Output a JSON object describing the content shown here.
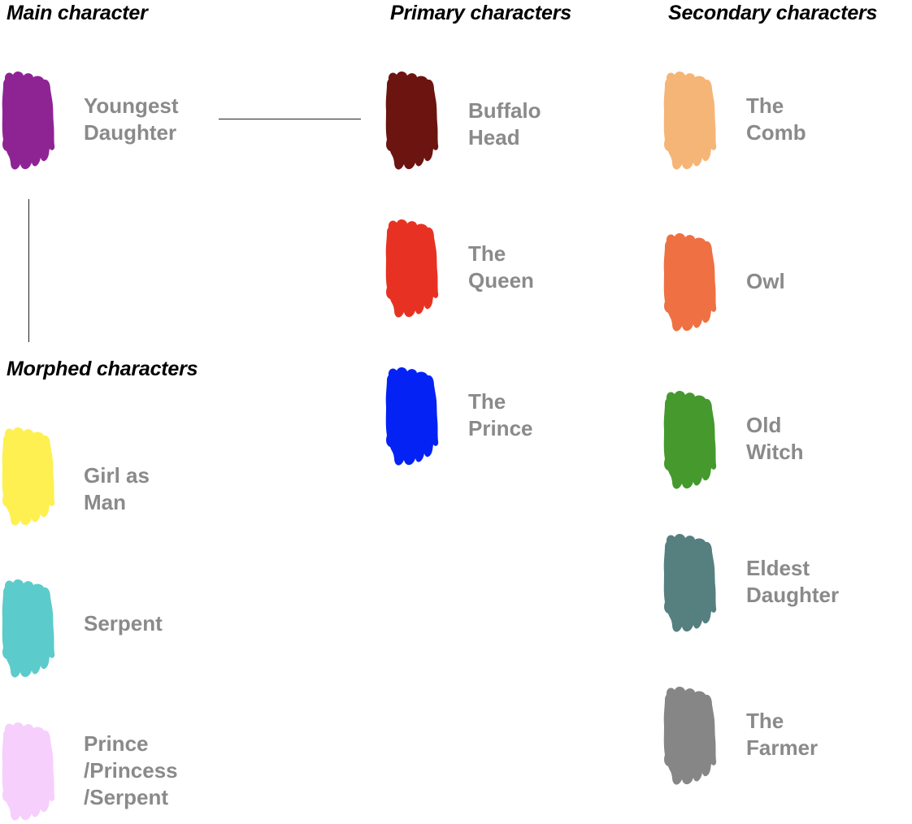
{
  "headings": {
    "main": "Main character",
    "primary": "Primary characters",
    "secondary": "Secondary characters",
    "morphed": "Morphed characters"
  },
  "main": [
    {
      "lines": [
        "Youngest",
        "Daughter"
      ],
      "color": "#8e2494"
    }
  ],
  "morphed": [
    {
      "lines": [
        "Girl as",
        "Man"
      ],
      "color": "#fef050"
    },
    {
      "lines": [
        "Serpent"
      ],
      "color": "#5ccbcb"
    },
    {
      "lines": [
        "Prince",
        "/Princess",
        "/Serpent"
      ],
      "color": "#f6cffd"
    }
  ],
  "primary": [
    {
      "lines": [
        "Buffalo",
        "Head"
      ],
      "color": "#6b1410"
    },
    {
      "lines": [
        "The",
        "Queen"
      ],
      "color": "#e73223"
    },
    {
      "lines": [
        "The",
        "Prince"
      ],
      "color": "#0522f5"
    }
  ],
  "secondary": [
    {
      "lines": [
        "The",
        "Comb"
      ],
      "color": "#f5b577"
    },
    {
      "lines": [
        "Owl"
      ],
      "color": "#ef7043"
    },
    {
      "lines": [
        "Old",
        "Witch"
      ],
      "color": "#45992d"
    },
    {
      "lines": [
        "Eldest",
        "Daughter"
      ],
      "color": "#567f80"
    },
    {
      "lines": [
        "The",
        "Farmer"
      ],
      "color": "#868686"
    }
  ],
  "label_color": "#8a8a8a"
}
